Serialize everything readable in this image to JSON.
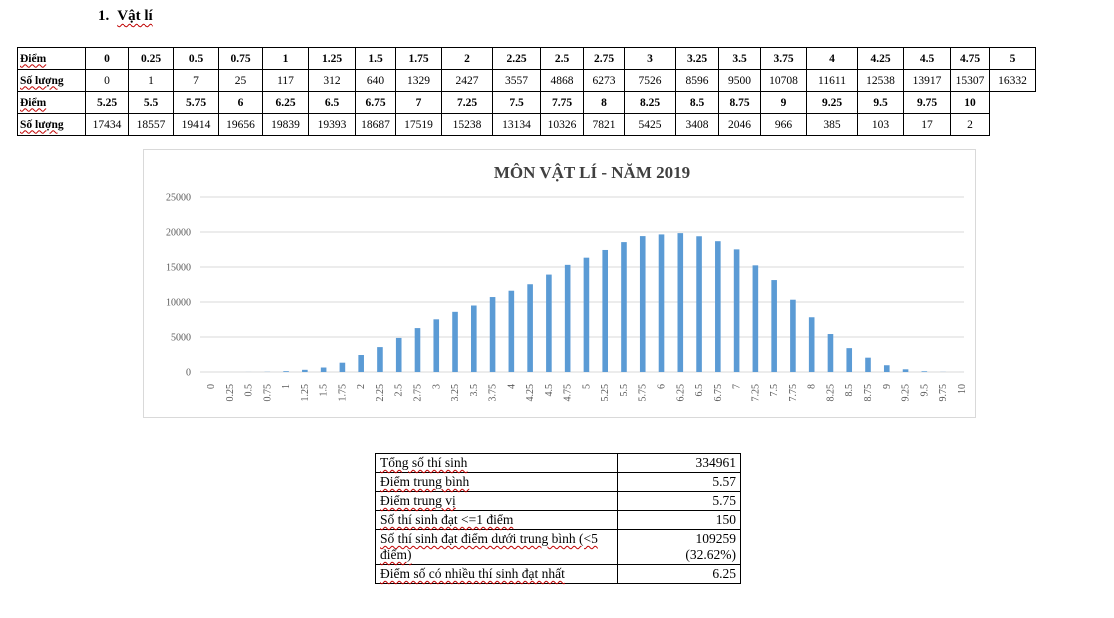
{
  "heading": {
    "number": "1.",
    "title": "Vật lí"
  },
  "score_table": {
    "row_label_points": "Điểm",
    "row_label_count": "Số lượng",
    "block1": {
      "points": [
        "0",
        "0.25",
        "0.5",
        "0.75",
        "1",
        "1.25",
        "1.5",
        "1.75",
        "2",
        "2.25",
        "2.5",
        "2.75",
        "3",
        "3.25",
        "3.5",
        "3.75",
        "4",
        "4.25",
        "4.5",
        "4.75",
        "5"
      ],
      "counts": [
        "0",
        "1",
        "7",
        "25",
        "117",
        "312",
        "640",
        "1329",
        "2427",
        "3557",
        "4868",
        "6273",
        "7526",
        "8596",
        "9500",
        "10708",
        "11611",
        "12538",
        "13917",
        "15307",
        "16332"
      ]
    },
    "block2": {
      "points": [
        "5.25",
        "5.5",
        "5.75",
        "6",
        "6.25",
        "6.5",
        "6.75",
        "7",
        "7.25",
        "7.5",
        "7.75",
        "8",
        "8.25",
        "8.5",
        "8.75",
        "9",
        "9.25",
        "9.5",
        "9.75",
        "10"
      ],
      "counts": [
        "17434",
        "18557",
        "19414",
        "19656",
        "19839",
        "19393",
        "18687",
        "17519",
        "15238",
        "13134",
        "10326",
        "7821",
        "5425",
        "3408",
        "2046",
        "966",
        "385",
        "103",
        "17",
        "2"
      ]
    }
  },
  "chart_data": {
    "type": "bar",
    "title": "MÔN VẬT LÍ - NĂM 2019",
    "xlabel": "",
    "ylabel": "",
    "categories": [
      "0",
      "0.25",
      "0.5",
      "0.75",
      "1",
      "1.25",
      "1.5",
      "1.75",
      "2",
      "2.25",
      "2.5",
      "2.75",
      "3",
      "3.25",
      "3.5",
      "3.75",
      "4",
      "4.25",
      "4.5",
      "4.75",
      "5",
      "5.25",
      "5.5",
      "5.75",
      "6",
      "6.25",
      "6.5",
      "6.75",
      "7",
      "7.25",
      "7.5",
      "7.75",
      "8",
      "8.25",
      "8.5",
      "8.75",
      "9",
      "9.25",
      "9.5",
      "9.75",
      "10"
    ],
    "values": [
      0,
      1,
      7,
      25,
      117,
      312,
      640,
      1329,
      2427,
      3557,
      4868,
      6273,
      7526,
      8596,
      9500,
      10708,
      11611,
      12538,
      13917,
      15307,
      16332,
      17434,
      18557,
      19414,
      19656,
      19839,
      19393,
      18687,
      17519,
      15238,
      13134,
      10326,
      7821,
      5425,
      3408,
      2046,
      966,
      385,
      103,
      17,
      2
    ],
    "ylim": [
      0,
      25000
    ],
    "yticks": [
      "0",
      "5000",
      "10000",
      "15000",
      "20000",
      "25000"
    ],
    "grid": true,
    "legend": "none",
    "bar_color": "#5b9bd5",
    "grid_color": "#d9d9d9"
  },
  "stats": [
    {
      "label": "Tổng số thí sinh",
      "value": [
        "334961"
      ]
    },
    {
      "label": "Điểm trung bình",
      "value": [
        "5.57"
      ]
    },
    {
      "label": "Điểm trung vị",
      "value": [
        "5.75"
      ]
    },
    {
      "label": "Số thí sinh đạt <=1 điểm",
      "value": [
        "150"
      ]
    },
    {
      "label": "Số thí sinh đạt điểm dưới trung bình (<5 điểm)",
      "value": [
        "109259",
        "(32.62%)"
      ]
    },
    {
      "label": "Điểm số có nhiều thí sinh đạt nhất",
      "value": [
        "6.25"
      ]
    }
  ]
}
